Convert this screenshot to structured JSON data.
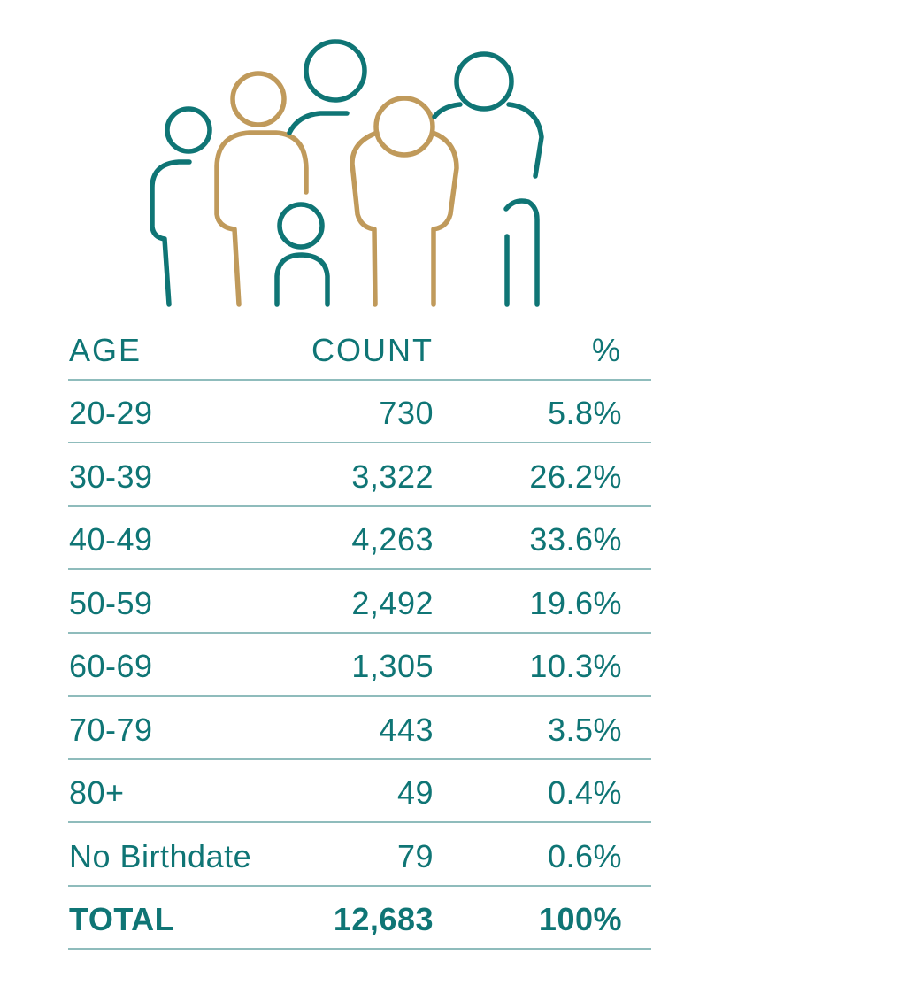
{
  "colors": {
    "teal": "#0f7575",
    "gold": "#c09a5b",
    "rule": "#8fbcbc"
  },
  "illustration": {
    "icon": "family-group-icon"
  },
  "table": {
    "headers": {
      "age": "AGE",
      "count": "COUNT",
      "pct": "%"
    },
    "rows": [
      {
        "age": "20-29",
        "count": "730",
        "pct": "5.8%"
      },
      {
        "age": "30-39",
        "count": "3,322",
        "pct": "26.2%"
      },
      {
        "age": "40-49",
        "count": "4,263",
        "pct": "33.6%"
      },
      {
        "age": "50-59",
        "count": "2,492",
        "pct": "19.6%"
      },
      {
        "age": "60-69",
        "count": "1,305",
        "pct": "10.3%"
      },
      {
        "age": "70-79",
        "count": "443",
        "pct": "3.5%"
      },
      {
        "age": "80+",
        "count": "49",
        "pct": "0.4%"
      },
      {
        "age": "No Birthdate",
        "count": "79",
        "pct": "0.6%"
      }
    ],
    "total": {
      "age": "TOTAL",
      "count": "12,683",
      "pct": "100%"
    }
  }
}
